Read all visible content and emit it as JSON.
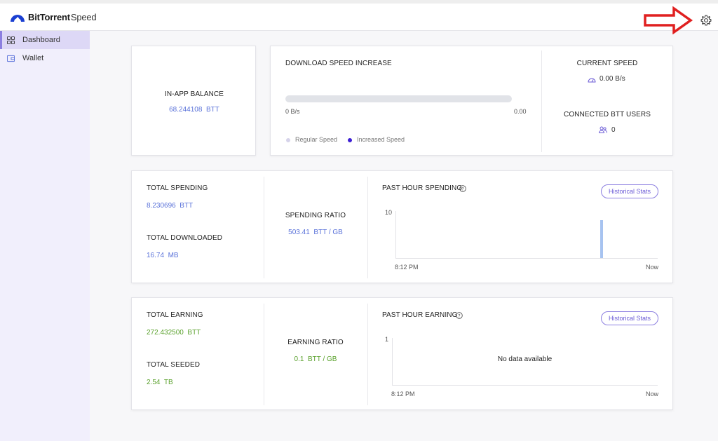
{
  "app": {
    "brand_bold": "BitTorrent",
    "brand_light": "Speed"
  },
  "sidebar": {
    "items": [
      {
        "label": "Dashboard",
        "active": true
      },
      {
        "label": "Wallet",
        "active": false
      }
    ]
  },
  "balance": {
    "title": "IN-APP BALANCE",
    "value": "68.244108",
    "unit": "BTT"
  },
  "download": {
    "title": "DOWNLOAD SPEED INCREASE",
    "left": "0 B/s",
    "right": "0.00",
    "legend_regular": "Regular Speed",
    "legend_increased": "Increased Speed",
    "progress": 0
  },
  "current": {
    "title": "CURRENT SPEED",
    "value": "0.00 B/s",
    "users_title": "CONNECTED BTT USERS",
    "users_value": "0"
  },
  "spending": {
    "total_title": "TOTAL SPENDING",
    "total_value": "8.230696",
    "total_unit": "BTT",
    "downloaded_title": "TOTAL DOWNLOADED",
    "downloaded_value": "16.74",
    "downloaded_unit": "MB",
    "ratio_title": "SPENDING RATIO",
    "ratio_value": "503.41",
    "ratio_unit": "BTT / GB",
    "chart_title": "PAST HOUR SPENDING",
    "button": "Historical Stats",
    "y_max": "10",
    "x_start": "8:12 PM",
    "x_end": "Now"
  },
  "earning": {
    "total_title": "TOTAL EARNING",
    "total_value": "272.432500",
    "total_unit": "BTT",
    "seeded_title": "TOTAL SEEDED",
    "seeded_value": "2.54",
    "seeded_unit": "TB",
    "ratio_title": "EARNING RATIO",
    "ratio_value": "0.1",
    "ratio_unit": "BTT / GB",
    "chart_title": "PAST HOUR EARNING",
    "button": "Historical Stats",
    "y_max": "1",
    "x_start": "8:12 PM",
    "x_end": "Now",
    "empty": "No data available"
  },
  "colors": {
    "accent": "#8c7fe0",
    "blue_value": "#5a72d9",
    "green_value": "#5aa12c",
    "arrow": "#e02020",
    "bar": "#a7c3f0"
  },
  "chart_data": [
    {
      "type": "bar",
      "title": "PAST HOUR SPENDING",
      "x_range": [
        "8:12 PM",
        "Now"
      ],
      "ylim": [
        0,
        10
      ],
      "bars": [
        {
          "x_fraction": 0.78,
          "value": 8
        }
      ]
    },
    {
      "type": "bar",
      "title": "PAST HOUR EARNING",
      "x_range": [
        "8:12 PM",
        "Now"
      ],
      "ylim": [
        0,
        1
      ],
      "bars": []
    }
  ]
}
